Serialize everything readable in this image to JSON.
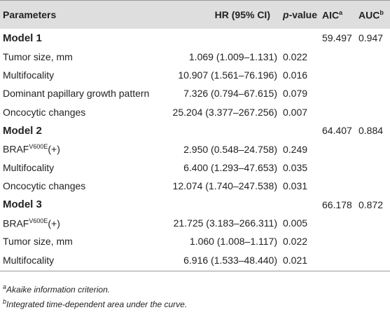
{
  "table": {
    "header": {
      "parameters": "Parameters",
      "hr": "HR (95% CI)",
      "p_italic": "p",
      "p_rest": "-value",
      "aic": "AIC",
      "aic_sup": "a",
      "auc": "AUC",
      "auc_sup": "b"
    },
    "groups": [
      {
        "label": "Model 1",
        "aic": "59.497",
        "auc": "0.947",
        "rows": [
          {
            "parameter": "Tumor size, mm",
            "hr": "1.069 (1.009–1.131)",
            "p": "0.022"
          },
          {
            "parameter": "Multifocality",
            "hr": "10.907 (1.561–76.196)",
            "p": "0.016"
          },
          {
            "parameter": "Dominant papillary growth pattern",
            "hr": "7.326 (0.794–67.615)",
            "p": "0.079"
          },
          {
            "parameter": "Oncocytic changes",
            "hr": "25.204 (3.377–267.256)",
            "p": "0.007"
          }
        ]
      },
      {
        "label": "Model 2",
        "aic": "64.407",
        "auc": "0.884",
        "rows": [
          {
            "parameter": "BRAF",
            "parameter_sup": "V600E",
            "parameter_suffix": "(+)",
            "hr": "2.950 (0.548–24.758)",
            "p": "0.249"
          },
          {
            "parameter": "Multifocality",
            "hr": "6.400 (1.293–47.653)",
            "p": "0.035"
          },
          {
            "parameter": "Oncocytic changes",
            "hr": "12.074 (1.740–247.538)",
            "p": "0.031"
          }
        ]
      },
      {
        "label": "Model 3",
        "aic": "66.178",
        "auc": "0.872",
        "rows": [
          {
            "parameter": "BRAF",
            "parameter_sup": "V600E",
            "parameter_suffix": "(+)",
            "hr": "21.725 (3.183–266.311)",
            "p": "0.005"
          },
          {
            "parameter": "Tumor size, mm",
            "hr": "1.060 (1.008–1.117)",
            "p": "0.022"
          },
          {
            "parameter": "Multifocality",
            "hr": "6.916 (1.533–48.440)",
            "p": "0.021"
          }
        ]
      }
    ]
  },
  "footnotes": [
    {
      "mark": "a",
      "text": "Akaike information criterion."
    },
    {
      "mark": "b",
      "text": "Integrated time-dependent area under the curve."
    }
  ]
}
